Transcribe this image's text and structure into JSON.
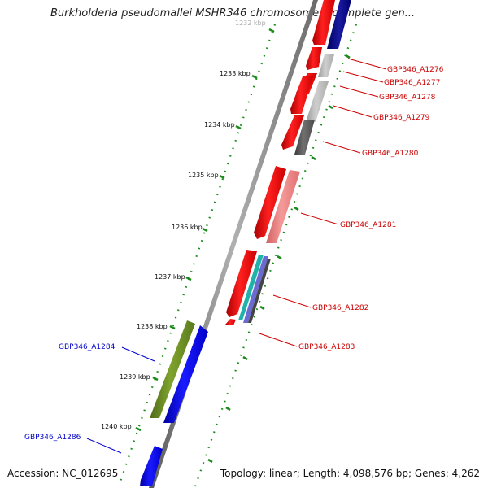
{
  "title": "Burkholderia pseudomallei MSHR346 chromosome I, complete gen...",
  "footer": {
    "accession": "Accession: NC_012695",
    "topology": "Topology: linear; Length: 4,098,576 bp; Genes: 4,262"
  },
  "axis": {
    "ticks": [
      {
        "label": "1232 kbp",
        "faded": true
      },
      {
        "label": "1233 kbp",
        "faded": false
      },
      {
        "label": "1234 kbp",
        "faded": false
      },
      {
        "label": "1235 kbp",
        "faded": false
      },
      {
        "label": "1236 kbp",
        "faded": false
      },
      {
        "label": "1237 kbp",
        "faded": false
      },
      {
        "label": "1238 kbp",
        "faded": false
      },
      {
        "label": "1239 kbp",
        "faded": false
      },
      {
        "label": "1240 kbp",
        "faded": false
      }
    ]
  },
  "gene_labels": [
    {
      "name": "GBP346_A1276",
      "color": "#cc0000"
    },
    {
      "name": "GBP346_A1277",
      "color": "#cc0000"
    },
    {
      "name": "GBP346_A1278",
      "color": "#cc0000"
    },
    {
      "name": "GBP346_A1279",
      "color": "#cc0000"
    },
    {
      "name": "GBP346_A1280",
      "color": "#cc0000"
    },
    {
      "name": "GBP346_A1281",
      "color": "#cc0000"
    },
    {
      "name": "GBP346_A1282",
      "color": "#cc0000"
    },
    {
      "name": "GBP346_A1283",
      "color": "#cc0000"
    },
    {
      "name": "GBP346_A1284",
      "color": "#0000cc"
    },
    {
      "name": "GBP346_A1286",
      "color": "#0000cc"
    }
  ],
  "colors": {
    "gene_red": "#ff0000",
    "gene_blue": "#0000ee",
    "gene_navy": "#000080",
    "gene_olive": "#6b8e23",
    "gene_pink": "#f08080",
    "gene_gray": "#888888",
    "gene_darkgray": "#555555",
    "gene_teal": "#20b2aa",
    "gene_purple": "#6a5acd",
    "backbone": "#777777",
    "tick_green": "#228b22"
  }
}
